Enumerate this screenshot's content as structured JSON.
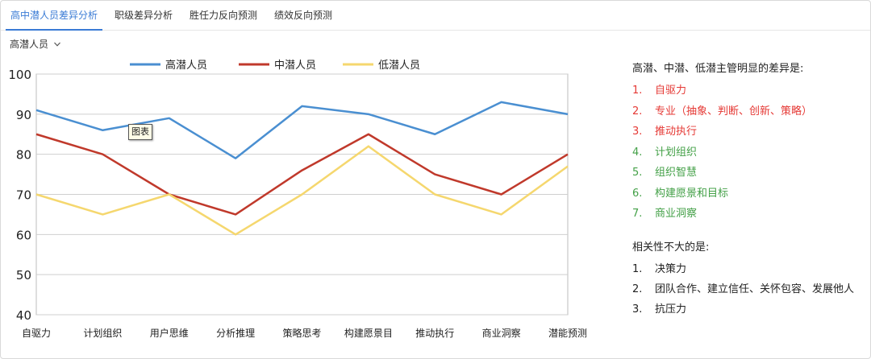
{
  "tabs": [
    {
      "label": "高中潜人员差异分析",
      "active": true
    },
    {
      "label": "职级差异分析",
      "active": false
    },
    {
      "label": "胜任力反向预测",
      "active": false
    },
    {
      "label": "绩效反向预测",
      "active": false
    }
  ],
  "selector": {
    "value": "高潜人员"
  },
  "tooltip": {
    "text": "图表"
  },
  "chart_data": {
    "type": "line",
    "title": "",
    "xlabel": "",
    "ylabel": "",
    "categories": [
      "自驱力",
      "计划组织",
      "用户思维",
      "分析推理",
      "策略思考",
      "构建愿景目",
      "推动执行",
      "商业洞察",
      "潜能预测"
    ],
    "ylim": [
      40,
      100
    ],
    "yticks": [
      40,
      50,
      60,
      70,
      80,
      90,
      100
    ],
    "grid": true,
    "legend": "top-center",
    "series": [
      {
        "name": "高潜人员",
        "color": "#4a8fd1",
        "values": [
          91,
          86,
          89,
          79,
          92,
          90,
          85,
          93,
          90
        ]
      },
      {
        "name": "中潜人员",
        "color": "#c0392b",
        "values": [
          85,
          80,
          70,
          65,
          76,
          85,
          75,
          70,
          80
        ]
      },
      {
        "name": "低潜人员",
        "color": "#f5d76e",
        "values": [
          70,
          65,
          70,
          60,
          70,
          82,
          70,
          65,
          77
        ]
      }
    ]
  },
  "notes": {
    "heading1": "高潜、中潜、低潜主管明显的差异是:",
    "list1": [
      {
        "num": "1.",
        "text": "自驱力",
        "color": "red"
      },
      {
        "num": "2.",
        "text": "专业（抽象、判断、创新、策略）",
        "color": "red"
      },
      {
        "num": "3.",
        "text": "推动执行",
        "color": "red"
      },
      {
        "num": "4.",
        "text": "计划组织",
        "color": "green"
      },
      {
        "num": "5.",
        "text": "组织智慧",
        "color": "green"
      },
      {
        "num": "6.",
        "text": "构建愿景和目标",
        "color": "green"
      },
      {
        "num": "7.",
        "text": "商业洞察",
        "color": "green"
      }
    ],
    "heading2": "相关性不大的是:",
    "list2": [
      {
        "num": "1.",
        "text": "决策力"
      },
      {
        "num": "2.",
        "text": "团队合作、建立信任、关怀包容、发展他人"
      },
      {
        "num": "3.",
        "text": "抗压力"
      }
    ]
  }
}
